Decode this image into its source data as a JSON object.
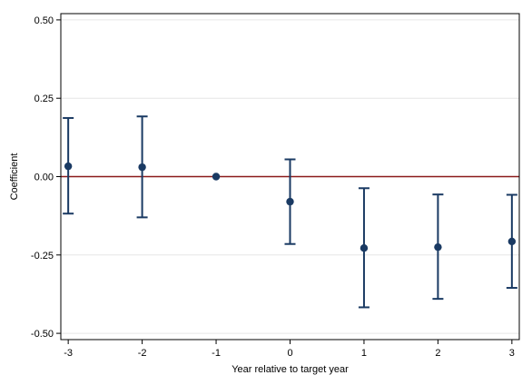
{
  "chart_data": {
    "type": "scatter",
    "xlabel": "Year relative to target year",
    "ylabel": "Coefficient",
    "x": [
      -3,
      -2,
      -1,
      0,
      1,
      2,
      3
    ],
    "x_tick_labels": [
      "-3",
      "-2",
      "-1",
      "0",
      "1",
      "2",
      "3"
    ],
    "y_ticks": [
      0.5,
      0.25,
      0.0,
      -0.25,
      -0.5
    ],
    "y_tick_labels": [
      "0.50",
      "0.25",
      "0.00",
      "-0.25",
      "-0.50"
    ],
    "xlim": [
      -3.1,
      3.1
    ],
    "ylim": [
      -0.52,
      0.52
    ],
    "grid": "horizontal",
    "reference_line": {
      "y": 0,
      "color": "#8b1a1a"
    },
    "series": [
      {
        "color": "#1a3a63",
        "coefficients": [
          0.033,
          0.03,
          0.0,
          -0.08,
          -0.228,
          -0.225,
          -0.207
        ],
        "ci_upper": [
          0.187,
          0.192,
          0.0,
          0.055,
          -0.037,
          -0.057,
          -0.058
        ],
        "ci_lower": [
          -0.118,
          -0.13,
          0.0,
          -0.215,
          -0.417,
          -0.39,
          -0.355
        ]
      }
    ]
  }
}
